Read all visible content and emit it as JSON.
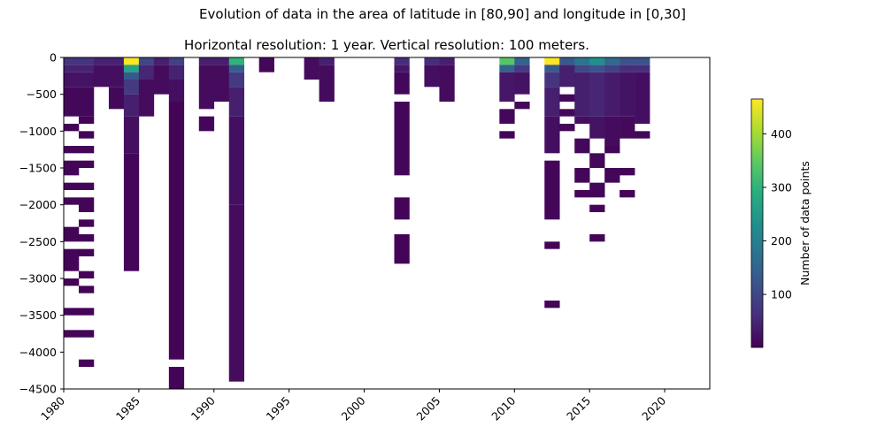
{
  "suptitle": "Evolution of data in the area of latitude in [80,90] and longitude in [0,30]",
  "chart_data": {
    "type": "heatmap",
    "title": "Horizontal resolution: 1 year. Vertical resolution: 100 meters.",
    "xlim": [
      1980,
      2023
    ],
    "ylim": [
      -4500,
      0
    ],
    "xticks": [
      1980,
      1985,
      1990,
      1995,
      2000,
      2005,
      2010,
      2015,
      2020
    ],
    "yticks": [
      0,
      -500,
      -1000,
      -1500,
      -2000,
      -2500,
      -3000,
      -3500,
      -4000,
      -4500
    ],
    "cell_width_years": 1,
    "cell_height_m": 100,
    "colorscale": "viridis",
    "colorbar": {
      "label": "Number of data points",
      "range": [
        1,
        465
      ],
      "ticks": [
        100,
        200,
        300,
        400
      ]
    },
    "cells": [
      {
        "year": 1980,
        "top": 0,
        "bottom": -100,
        "v": 70
      },
      {
        "year": 1980,
        "top": -100,
        "bottom": -200,
        "v": 45
      },
      {
        "year": 1980,
        "top": -200,
        "bottom": -400,
        "v": 25
      },
      {
        "year": 1980,
        "top": -400,
        "bottom": -800,
        "v": 10
      },
      {
        "year": 1980,
        "top": -900,
        "bottom": -1000,
        "v": 5
      },
      {
        "year": 1980,
        "top": -1200,
        "bottom": -1300,
        "v": 5
      },
      {
        "year": 1980,
        "top": -1400,
        "bottom": -1600,
        "v": 5
      },
      {
        "year": 1980,
        "top": -1700,
        "bottom": -1800,
        "v": 5
      },
      {
        "year": 1980,
        "top": -1900,
        "bottom": -2000,
        "v": 5
      },
      {
        "year": 1980,
        "top": -2300,
        "bottom": -2500,
        "v": 5
      },
      {
        "year": 1980,
        "top": -2600,
        "bottom": -2900,
        "v": 5
      },
      {
        "year": 1980,
        "top": -3000,
        "bottom": -3100,
        "v": 5
      },
      {
        "year": 1980,
        "top": -3400,
        "bottom": -3500,
        "v": 5
      },
      {
        "year": 1980,
        "top": -3700,
        "bottom": -3800,
        "v": 5
      },
      {
        "year": 1981,
        "top": 0,
        "bottom": -100,
        "v": 70
      },
      {
        "year": 1981,
        "top": -100,
        "bottom": -200,
        "v": 45
      },
      {
        "year": 1981,
        "top": -200,
        "bottom": -400,
        "v": 25
      },
      {
        "year": 1981,
        "top": -400,
        "bottom": -800,
        "v": 10
      },
      {
        "year": 1981,
        "top": -800,
        "bottom": -900,
        "v": 5
      },
      {
        "year": 1981,
        "top": -1000,
        "bottom": -1100,
        "v": 5
      },
      {
        "year": 1981,
        "top": -1200,
        "bottom": -1300,
        "v": 5
      },
      {
        "year": 1981,
        "top": -1400,
        "bottom": -1500,
        "v": 5
      },
      {
        "year": 1981,
        "top": -1700,
        "bottom": -1800,
        "v": 5
      },
      {
        "year": 1981,
        "top": -1900,
        "bottom": -2100,
        "v": 5
      },
      {
        "year": 1981,
        "top": -2200,
        "bottom": -2300,
        "v": 5
      },
      {
        "year": 1981,
        "top": -2400,
        "bottom": -2500,
        "v": 5
      },
      {
        "year": 1981,
        "top": -2600,
        "bottom": -2700,
        "v": 5
      },
      {
        "year": 1981,
        "top": -2900,
        "bottom": -3000,
        "v": 5
      },
      {
        "year": 1981,
        "top": -3100,
        "bottom": -3200,
        "v": 5
      },
      {
        "year": 1981,
        "top": -3400,
        "bottom": -3500,
        "v": 5
      },
      {
        "year": 1981,
        "top": -3700,
        "bottom": -3800,
        "v": 5
      },
      {
        "year": 1981,
        "top": -4100,
        "bottom": -4200,
        "v": 5
      },
      {
        "year": 1982,
        "top": 0,
        "bottom": -100,
        "v": 45
      },
      {
        "year": 1982,
        "top": -100,
        "bottom": -400,
        "v": 20
      },
      {
        "year": 1983,
        "top": 0,
        "bottom": -100,
        "v": 45
      },
      {
        "year": 1983,
        "top": -100,
        "bottom": -400,
        "v": 20
      },
      {
        "year": 1983,
        "top": -400,
        "bottom": -700,
        "v": 10
      },
      {
        "year": 1984,
        "top": 0,
        "bottom": -100,
        "v": 465
      },
      {
        "year": 1984,
        "top": -100,
        "bottom": -200,
        "v": 270
      },
      {
        "year": 1984,
        "top": -200,
        "bottom": -300,
        "v": 130
      },
      {
        "year": 1984,
        "top": -300,
        "bottom": -500,
        "v": 80
      },
      {
        "year": 1984,
        "top": -500,
        "bottom": -800,
        "v": 40
      },
      {
        "year": 1984,
        "top": -800,
        "bottom": -1300,
        "v": 20
      },
      {
        "year": 1984,
        "top": -1300,
        "bottom": -2900,
        "v": 8
      },
      {
        "year": 1985,
        "top": 0,
        "bottom": -100,
        "v": 100
      },
      {
        "year": 1985,
        "top": -100,
        "bottom": -300,
        "v": 50
      },
      {
        "year": 1985,
        "top": -300,
        "bottom": -800,
        "v": 15
      },
      {
        "year": 1986,
        "top": 0,
        "bottom": -100,
        "v": 40
      },
      {
        "year": 1986,
        "top": -100,
        "bottom": -500,
        "v": 15
      },
      {
        "year": 1987,
        "top": 0,
        "bottom": -100,
        "v": 90
      },
      {
        "year": 1987,
        "top": -100,
        "bottom": -300,
        "v": 45
      },
      {
        "year": 1987,
        "top": -300,
        "bottom": -600,
        "v": 20
      },
      {
        "year": 1987,
        "top": -600,
        "bottom": -4100,
        "v": 6
      },
      {
        "year": 1987,
        "top": -4200,
        "bottom": -4500,
        "v": 5
      },
      {
        "year": 1989,
        "top": 0,
        "bottom": -100,
        "v": 40
      },
      {
        "year": 1989,
        "top": -100,
        "bottom": -700,
        "v": 15
      },
      {
        "year": 1989,
        "top": -800,
        "bottom": -1000,
        "v": 8
      },
      {
        "year": 1990,
        "top": 0,
        "bottom": -100,
        "v": 40
      },
      {
        "year": 1990,
        "top": -100,
        "bottom": -600,
        "v": 15
      },
      {
        "year": 1991,
        "top": 0,
        "bottom": -100,
        "v": 300
      },
      {
        "year": 1991,
        "top": -100,
        "bottom": -200,
        "v": 140
      },
      {
        "year": 1991,
        "top": -200,
        "bottom": -400,
        "v": 80
      },
      {
        "year": 1991,
        "top": -400,
        "bottom": -800,
        "v": 40
      },
      {
        "year": 1991,
        "top": -800,
        "bottom": -2000,
        "v": 20
      },
      {
        "year": 1991,
        "top": -2000,
        "bottom": -4400,
        "v": 15
      },
      {
        "year": 1993,
        "top": 0,
        "bottom": -200,
        "v": 10
      },
      {
        "year": 1996,
        "top": 0,
        "bottom": -300,
        "v": 15
      },
      {
        "year": 1997,
        "top": 0,
        "bottom": -100,
        "v": 40
      },
      {
        "year": 1997,
        "top": -100,
        "bottom": -600,
        "v": 15
      },
      {
        "year": 2002,
        "top": 0,
        "bottom": -100,
        "v": 60
      },
      {
        "year": 2002,
        "top": -100,
        "bottom": -200,
        "v": 30
      },
      {
        "year": 2002,
        "top": -200,
        "bottom": -500,
        "v": 10
      },
      {
        "year": 2002,
        "top": -600,
        "bottom": -1600,
        "v": 8
      },
      {
        "year": 2002,
        "top": -1900,
        "bottom": -2200,
        "v": 5
      },
      {
        "year": 2002,
        "top": -2400,
        "bottom": -2800,
        "v": 5
      },
      {
        "year": 2004,
        "top": 0,
        "bottom": -100,
        "v": 60
      },
      {
        "year": 2004,
        "top": -100,
        "bottom": -400,
        "v": 20
      },
      {
        "year": 2005,
        "top": 0,
        "bottom": -100,
        "v": 40
      },
      {
        "year": 2005,
        "top": -100,
        "bottom": -600,
        "v": 15
      },
      {
        "year": 2009,
        "top": 0,
        "bottom": -100,
        "v": 340
      },
      {
        "year": 2009,
        "top": -100,
        "bottom": -200,
        "v": 150
      },
      {
        "year": 2009,
        "top": -200,
        "bottom": -600,
        "v": 30
      },
      {
        "year": 2009,
        "top": -700,
        "bottom": -900,
        "v": 10
      },
      {
        "year": 2009,
        "top": -1000,
        "bottom": -1100,
        "v": 5
      },
      {
        "year": 2010,
        "top": 0,
        "bottom": -100,
        "v": 150
      },
      {
        "year": 2010,
        "top": -100,
        "bottom": -200,
        "v": 80
      },
      {
        "year": 2010,
        "top": -200,
        "bottom": -500,
        "v": 25
      },
      {
        "year": 2010,
        "top": -600,
        "bottom": -700,
        "v": 10
      },
      {
        "year": 2012,
        "top": 0,
        "bottom": -100,
        "v": 465
      },
      {
        "year": 2012,
        "top": -100,
        "bottom": -200,
        "v": 130
      },
      {
        "year": 2012,
        "top": -200,
        "bottom": -400,
        "v": 70
      },
      {
        "year": 2012,
        "top": -400,
        "bottom": -800,
        "v": 40
      },
      {
        "year": 2012,
        "top": -800,
        "bottom": -1300,
        "v": 20
      },
      {
        "year": 2012,
        "top": -1400,
        "bottom": -2200,
        "v": 8
      },
      {
        "year": 2012,
        "top": -2500,
        "bottom": -2600,
        "v": 5
      },
      {
        "year": 2012,
        "top": -3300,
        "bottom": -3400,
        "v": 5
      },
      {
        "year": 2013,
        "top": 0,
        "bottom": -100,
        "v": 130
      },
      {
        "year": 2013,
        "top": -100,
        "bottom": -400,
        "v": 40
      },
      {
        "year": 2013,
        "top": -500,
        "bottom": -600,
        "v": 10
      },
      {
        "year": 2013,
        "top": -700,
        "bottom": -800,
        "v": 10
      },
      {
        "year": 2013,
        "top": -900,
        "bottom": -1000,
        "v": 10
      },
      {
        "year": 2014,
        "top": 0,
        "bottom": -100,
        "v": 180
      },
      {
        "year": 2014,
        "top": -100,
        "bottom": -200,
        "v": 100
      },
      {
        "year": 2014,
        "top": -200,
        "bottom": -800,
        "v": 40
      },
      {
        "year": 2014,
        "top": -800,
        "bottom": -900,
        "v": 20
      },
      {
        "year": 2014,
        "top": -1100,
        "bottom": -1300,
        "v": 10
      },
      {
        "year": 2014,
        "top": -1500,
        "bottom": -1700,
        "v": 8
      },
      {
        "year": 2014,
        "top": -1800,
        "bottom": -1900,
        "v": 5
      },
      {
        "year": 2015,
        "top": 0,
        "bottom": -100,
        "v": 230
      },
      {
        "year": 2015,
        "top": -100,
        "bottom": -200,
        "v": 120
      },
      {
        "year": 2015,
        "top": -200,
        "bottom": -800,
        "v": 50
      },
      {
        "year": 2015,
        "top": -800,
        "bottom": -1100,
        "v": 25
      },
      {
        "year": 2015,
        "top": -1300,
        "bottom": -1500,
        "v": 10
      },
      {
        "year": 2015,
        "top": -1700,
        "bottom": -1900,
        "v": 8
      },
      {
        "year": 2015,
        "top": -2000,
        "bottom": -2100,
        "v": 5
      },
      {
        "year": 2015,
        "top": -2400,
        "bottom": -2500,
        "v": 5
      },
      {
        "year": 2016,
        "top": 0,
        "bottom": -100,
        "v": 160
      },
      {
        "year": 2016,
        "top": -100,
        "bottom": -200,
        "v": 90
      },
      {
        "year": 2016,
        "top": -200,
        "bottom": -800,
        "v": 35
      },
      {
        "year": 2016,
        "top": -800,
        "bottom": -1200,
        "v": 15
      },
      {
        "year": 2016,
        "top": -1200,
        "bottom": -1300,
        "v": 8
      },
      {
        "year": 2016,
        "top": -1500,
        "bottom": -1700,
        "v": 8
      },
      {
        "year": 2017,
        "top": 0,
        "bottom": -100,
        "v": 120
      },
      {
        "year": 2017,
        "top": -100,
        "bottom": -200,
        "v": 60
      },
      {
        "year": 2017,
        "top": -200,
        "bottom": -800,
        "v": 25
      },
      {
        "year": 2017,
        "top": -800,
        "bottom": -1100,
        "v": 12
      },
      {
        "year": 2017,
        "top": -1500,
        "bottom": -1600,
        "v": 5
      },
      {
        "year": 2017,
        "top": -1800,
        "bottom": -1900,
        "v": 5
      },
      {
        "year": 2018,
        "top": 0,
        "bottom": -100,
        "v": 120
      },
      {
        "year": 2018,
        "top": -100,
        "bottom": -200,
        "v": 60
      },
      {
        "year": 2018,
        "top": -200,
        "bottom": -900,
        "v": 20
      },
      {
        "year": 2018,
        "top": -1000,
        "bottom": -1100,
        "v": 8
      }
    ]
  }
}
